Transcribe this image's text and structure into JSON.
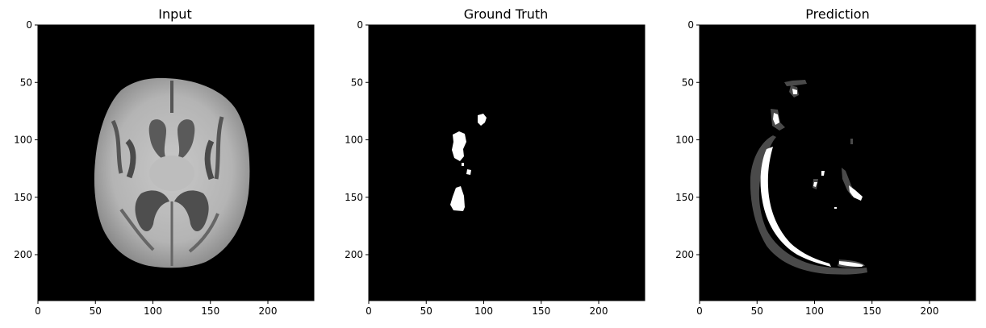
{
  "panels": [
    {
      "key": "input",
      "title": "Input",
      "x_ticks": [
        "0",
        "50",
        "100",
        "150",
        "200"
      ],
      "y_ticks": [
        "0",
        "50",
        "100",
        "150",
        "200"
      ]
    },
    {
      "key": "ground_truth",
      "title": "Ground Truth",
      "x_ticks": [
        "0",
        "50",
        "100",
        "150",
        "200"
      ],
      "y_ticks": [
        "0",
        "50",
        "100",
        "150",
        "200"
      ]
    },
    {
      "key": "prediction",
      "title": "Prediction",
      "x_ticks": [
        "0",
        "50",
        "100",
        "150",
        "200"
      ],
      "y_ticks": [
        "0",
        "50",
        "100",
        "150",
        "200"
      ]
    }
  ],
  "image_extent": [
    0,
    240
  ],
  "colors": {
    "background": "#000000",
    "foreground": "#ffffff",
    "class_gray": "#4a4a4a"
  }
}
